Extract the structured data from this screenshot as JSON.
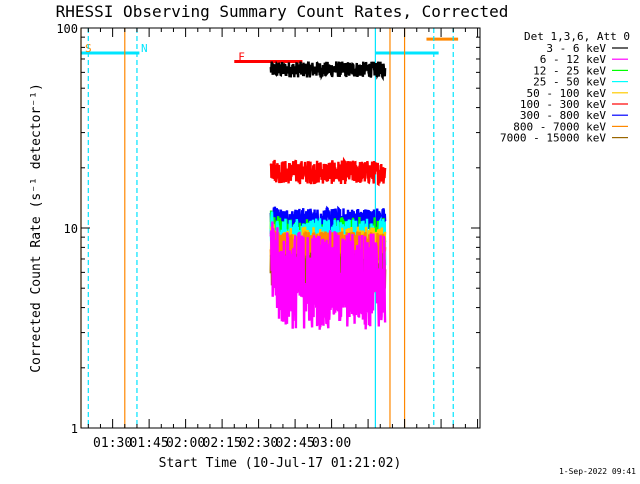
{
  "chart_data": {
    "type": "line",
    "title": "RHESSI Observing Summary Count Rates, Corrected",
    "xlabel": "Start Time (10-Jul-17 01:21:02)",
    "ylabel": "Corrected Count Rate (s⁻¹ detector⁻¹)",
    "yscale": "log",
    "ylim": [
      1,
      100
    ],
    "ytick_labels": [
      "1",
      "10",
      "100"
    ],
    "ytick_values": [
      1,
      10,
      100
    ],
    "xlim_min": [
      17,
      181
    ],
    "xtick_labels": [
      "01:30",
      "01:45",
      "02:00",
      "02:15",
      "02:30",
      "02:45",
      "03:00"
    ],
    "xtick_values_min": [
      30,
      45,
      60,
      75,
      90,
      105,
      120
    ],
    "legend_title": "Det 1,3,6, Att 0",
    "legend_position": "right, outside plot",
    "timestamp": "1-Sep-2022 09:41",
    "data_window_min": [
      95,
      142
    ],
    "series": [
      {
        "name": "3 - 6 keV",
        "color": "#000000",
        "base": 62,
        "peak": 0,
        "noise": 0.04,
        "x": [
          95,
          141
        ],
        "y": [
          62,
          62
        ]
      },
      {
        "name": "6 - 12 keV",
        "color": "#ff00ff",
        "base": 5.5,
        "peak": 0.9,
        "noise": 0.25,
        "x": [
          95,
          141
        ],
        "y": [
          5.5,
          5.5
        ]
      },
      {
        "name": "12 - 25 keV",
        "color": "#00ff00",
        "base": 7.5,
        "peak": 1.2,
        "noise": 0.18,
        "x": [
          95,
          141
        ],
        "y": [
          7.5,
          7.5
        ]
      },
      {
        "name": "25 - 50 keV",
        "color": "#00ffff",
        "base": 8.5,
        "peak": 0.6,
        "noise": 0.12,
        "x": [
          95,
          141
        ],
        "y": [
          8.5,
          8.5
        ]
      },
      {
        "name": "50 - 100 keV",
        "color": "#ffcc00",
        "base": 7.2,
        "peak": 0.7,
        "noise": 0.15,
        "x": [
          95,
          141
        ],
        "y": [
          7.2,
          7.2
        ]
      },
      {
        "name": "100 - 300 keV",
        "color": "#ff0000",
        "base": 19,
        "peak": 0.35,
        "noise": 0.06,
        "x": [
          95,
          141
        ],
        "y": [
          19,
          19
        ]
      },
      {
        "name": "300 - 800 keV",
        "color": "#0000ff",
        "base": 11,
        "peak": 0.4,
        "noise": 0.06,
        "x": [
          95,
          141
        ],
        "y": [
          11,
          11
        ]
      },
      {
        "name": "800 - 7000 keV",
        "color": "#ff8800",
        "base": 8.0,
        "peak": 0.2,
        "noise": 0.08,
        "x": [
          95,
          141
        ],
        "y": [
          8.0,
          8.0
        ]
      },
      {
        "name": "7000 - 15000 keV",
        "color": "#996600",
        "base": 6.0,
        "peak": 0.3,
        "noise": 0.1,
        "x": [
          95,
          141
        ],
        "y": [
          6.0,
          6.0
        ]
      }
    ],
    "flag_bars": [
      {
        "label": "S",
        "color": "#00e5ff",
        "label_color": "#ff8800",
        "x": [
          17,
          40
        ],
        "y": 75
      },
      {
        "label": "N",
        "color": "#00e5ff",
        "label_color": "#00e5ff",
        "x": [
          40,
          41
        ],
        "y": 75
      },
      {
        "label": "F",
        "color": "#ff0000",
        "label_color": "#ff0000",
        "x": [
          80,
          108
        ],
        "y": 68
      },
      {
        "label": "",
        "color": "#00e5ff",
        "label_color": "#00e5ff",
        "x": [
          138,
          164
        ],
        "y": 75
      },
      {
        "label": "",
        "color": "#ff8800",
        "label_color": "#ff8800",
        "x": [
          159,
          172
        ],
        "y": 88
      }
    ],
    "vertical_lines": [
      {
        "x": 17,
        "color": "#ff8800",
        "dashed": false
      },
      {
        "x": 20,
        "color": "#00e5ff",
        "dashed": true
      },
      {
        "x": 35,
        "color": "#ff8800",
        "dashed": false
      },
      {
        "x": 40,
        "color": "#00e5ff",
        "dashed": true
      },
      {
        "x": 138,
        "color": "#00e5ff",
        "dashed": false
      },
      {
        "x": 144,
        "color": "#ff8800",
        "dashed": false
      },
      {
        "x": 150,
        "color": "#ff8800",
        "dashed": false
      },
      {
        "x": 162,
        "color": "#00e5ff",
        "dashed": true
      },
      {
        "x": 170,
        "color": "#00e5ff",
        "dashed": true
      }
    ]
  }
}
